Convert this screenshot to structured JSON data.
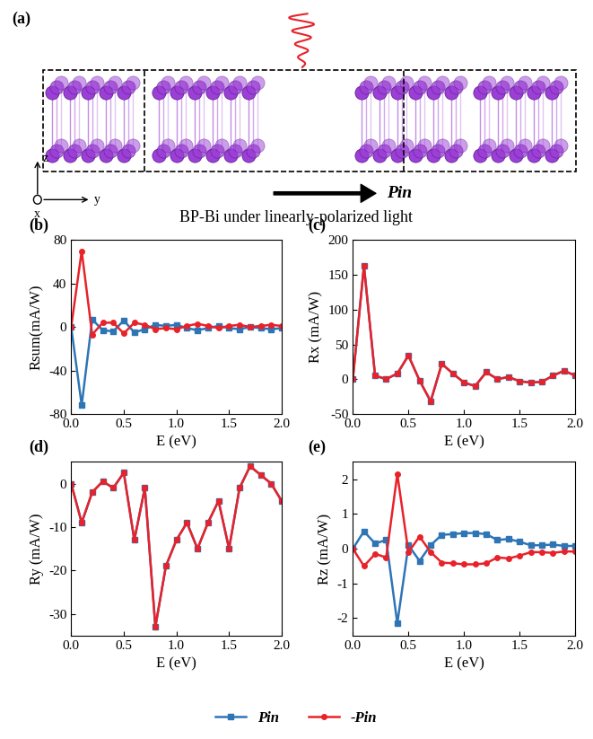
{
  "diagram": {
    "label": "(a)",
    "caption": "BP-Bi under linearly-polarized light",
    "polarization_label": "Pin",
    "axes": {
      "x": "x",
      "y": "y",
      "z": "z"
    }
  },
  "chart_data": [
    {
      "type": "line",
      "title": "(b)",
      "xlabel": "E (eV)",
      "ylabel": "Rsum(mA/W)",
      "x": [
        0.0,
        0.1,
        0.2,
        0.3,
        0.4,
        0.5,
        0.6,
        0.7,
        0.8,
        0.9,
        1.0,
        1.1,
        1.2,
        1.3,
        1.4,
        1.5,
        1.6,
        1.7,
        1.8,
        1.9,
        2.0
      ],
      "xlim": [
        0.0,
        2.0
      ],
      "xticks": [
        0.0,
        0.5,
        1.0,
        1.5,
        2.0
      ],
      "ylim": [
        -80,
        80
      ],
      "yticks": [
        -80,
        -40,
        0,
        40,
        80
      ],
      "series": [
        {
          "name": "Pin",
          "color": "#2e75b6",
          "marker": "square",
          "line_style": "solid",
          "values": [
            0,
            -72,
            7,
            -3,
            -4,
            6,
            -5,
            -2,
            2,
            1,
            2,
            -1,
            -3,
            -1,
            1,
            -1,
            -2,
            0,
            -1,
            -2,
            -1
          ]
        },
        {
          "name": "-Pin",
          "color": "#e8222a",
          "marker": "circle",
          "line_style": "solid",
          "values": [
            0,
            70,
            -7,
            4,
            4,
            -6,
            4,
            2,
            -2,
            -1,
            -2,
            1,
            3,
            1,
            -1,
            1,
            2,
            0,
            1,
            2,
            1
          ]
        }
      ]
    },
    {
      "type": "line",
      "title": "(c)",
      "xlabel": "E (eV)",
      "ylabel": "Rx (mA/W)",
      "x": [
        0.0,
        0.1,
        0.2,
        0.3,
        0.4,
        0.5,
        0.6,
        0.7,
        0.8,
        0.9,
        1.0,
        1.1,
        1.2,
        1.3,
        1.4,
        1.5,
        1.6,
        1.7,
        1.8,
        1.9,
        2.0
      ],
      "xlim": [
        0.0,
        2.0
      ],
      "xticks": [
        0.0,
        0.5,
        1.0,
        1.5,
        2.0
      ],
      "ylim": [
        -50,
        200
      ],
      "yticks": [
        -50,
        0,
        50,
        100,
        150,
        200
      ],
      "series": [
        {
          "name": "Pin",
          "color": "#2e75b6",
          "marker": "square",
          "line_style": "solid",
          "values": [
            0,
            163,
            5,
            0,
            8,
            34,
            -2,
            -32,
            22,
            8,
            -5,
            -10,
            10,
            0,
            3,
            -3,
            -5,
            -4,
            5,
            12,
            5
          ]
        },
        {
          "name": "-Pin",
          "color": "#e8222a",
          "marker": "circle",
          "line_style": "solid",
          "values": [
            0,
            163,
            5,
            0,
            8,
            34,
            -2,
            -32,
            22,
            8,
            -5,
            -10,
            10,
            0,
            3,
            -3,
            -5,
            -4,
            5,
            12,
            5
          ]
        }
      ]
    },
    {
      "type": "line",
      "title": "(d)",
      "xlabel": "E (eV)",
      "ylabel": "Ry (mA/W)",
      "x": [
        0.0,
        0.1,
        0.2,
        0.3,
        0.4,
        0.5,
        0.6,
        0.7,
        0.8,
        0.9,
        1.0,
        1.1,
        1.2,
        1.3,
        1.4,
        1.5,
        1.6,
        1.7,
        1.8,
        1.9,
        2.0
      ],
      "xlim": [
        0.0,
        2.0
      ],
      "xticks": [
        0.0,
        0.5,
        1.0,
        1.5,
        2.0
      ],
      "ylim": [
        -35,
        5
      ],
      "yticks": [
        -30,
        -20,
        -10,
        0
      ],
      "series": [
        {
          "name": "Pin",
          "color": "#2e75b6",
          "marker": "square",
          "line_style": "solid",
          "values": [
            0,
            -9,
            -2,
            0.5,
            -1,
            2.5,
            -13,
            -1,
            -33,
            -19,
            -13,
            -9,
            -15,
            -9,
            -4,
            -15,
            -1,
            4,
            2,
            0,
            -4
          ]
        },
        {
          "name": "-Pin",
          "color": "#e8222a",
          "marker": "circle",
          "line_style": "solid",
          "values": [
            0,
            -9,
            -2,
            0.5,
            -1,
            2.5,
            -13,
            -1,
            -33,
            -19,
            -13,
            -9,
            -15,
            -9,
            -4,
            -15,
            -1,
            4,
            2,
            0,
            -4
          ]
        }
      ]
    },
    {
      "type": "line",
      "title": "(e)",
      "xlabel": "E (eV)",
      "ylabel": "Rz (mA/W)",
      "legend": "lower center",
      "x": [
        0.0,
        0.1,
        0.2,
        0.3,
        0.4,
        0.5,
        0.6,
        0.7,
        0.8,
        0.9,
        1.0,
        1.1,
        1.2,
        1.3,
        1.4,
        1.5,
        1.6,
        1.7,
        1.8,
        1.9,
        2.0
      ],
      "xlim": [
        0.0,
        2.0
      ],
      "xticks": [
        0.0,
        0.5,
        1.0,
        1.5,
        2.0
      ],
      "ylim": [
        -2.5,
        2.5
      ],
      "yticks": [
        -2,
        -1,
        0,
        1,
        2
      ],
      "series": [
        {
          "name": "Pin",
          "color": "#2e75b6",
          "marker": "square",
          "line_style": "solid",
          "values": [
            0,
            0.5,
            0.15,
            0.25,
            -2.15,
            0.1,
            -0.35,
            0.1,
            0.4,
            0.42,
            0.45,
            0.45,
            0.42,
            0.25,
            0.28,
            0.2,
            0.1,
            0.1,
            0.12,
            0.08,
            0.08
          ]
        },
        {
          "name": "-Pin",
          "color": "#e8222a",
          "marker": "circle",
          "line_style": "solid",
          "values": [
            0,
            -0.5,
            -0.15,
            -0.25,
            2.15,
            -0.1,
            0.35,
            -0.1,
            -0.4,
            -0.42,
            -0.45,
            -0.45,
            -0.42,
            -0.25,
            -0.28,
            -0.2,
            -0.1,
            -0.1,
            -0.12,
            -0.08,
            -0.08
          ]
        }
      ]
    }
  ]
}
